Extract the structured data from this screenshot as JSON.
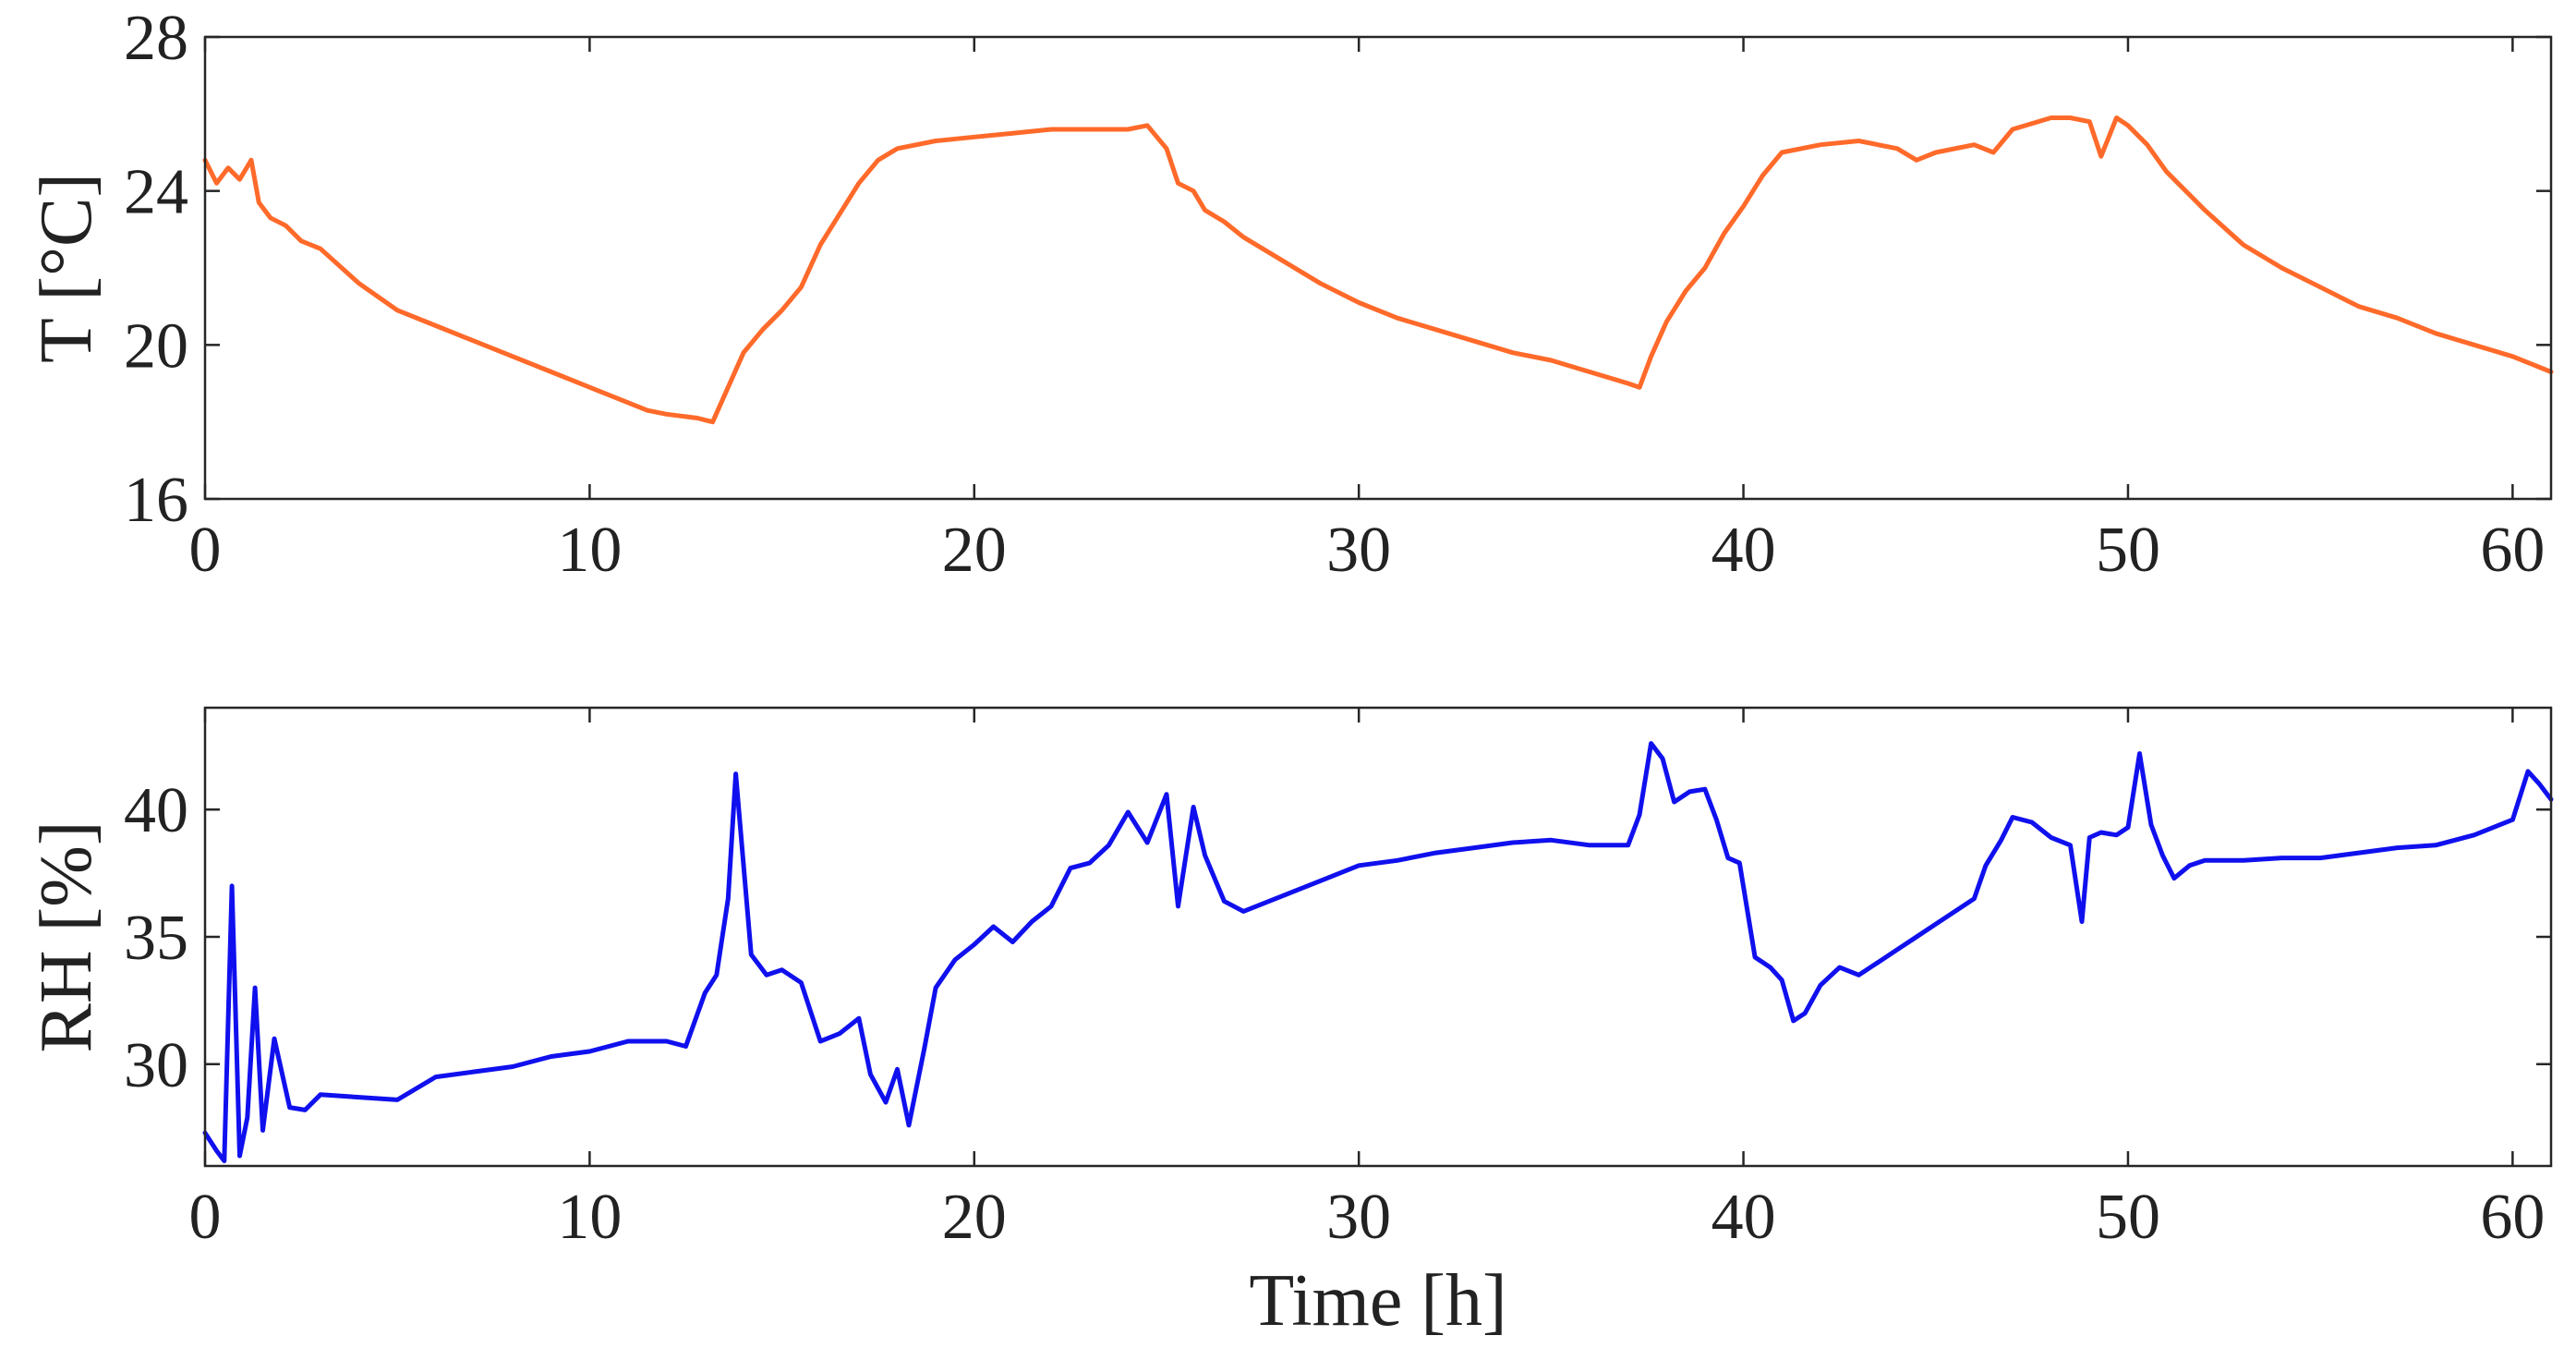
{
  "chart_data": [
    {
      "type": "line",
      "title": "",
      "xlabel": "",
      "ylabel": "T [°C]",
      "xlim": [
        0,
        61
      ],
      "ylim": [
        16,
        28
      ],
      "xticks": [
        0,
        10,
        20,
        30,
        40,
        50,
        60
      ],
      "xtick_labels": [
        "0",
        "10",
        "20",
        "30",
        "40",
        "50",
        "60"
      ],
      "yticks": [
        16,
        20,
        24,
        28
      ],
      "ytick_labels": [
        "16",
        "20",
        "24",
        "28"
      ],
      "grid": false,
      "series": [
        {
          "name": "T",
          "color": "#FF6A2A",
          "x": [
            0,
            0.3,
            0.6,
            0.9,
            1.2,
            1.4,
            1.7,
            2.1,
            2.5,
            3,
            4,
            5,
            6,
            7,
            8,
            9,
            10,
            11,
            11.5,
            12,
            12.8,
            13.2,
            13.6,
            14,
            14.5,
            15,
            15.5,
            16,
            16.5,
            17,
            17.5,
            18,
            19,
            20,
            21,
            22,
            23,
            24,
            24.5,
            25,
            25.3,
            25.7,
            26,
            26.5,
            27,
            28,
            29,
            30,
            31,
            32,
            33,
            34,
            35,
            36,
            37,
            37.3,
            37.6,
            38,
            38.5,
            39,
            39.5,
            40,
            40.5,
            41,
            42,
            43,
            44,
            44.5,
            45,
            46,
            46.5,
            47,
            48,
            48.5,
            49,
            49.3,
            49.7,
            50,
            50.5,
            51,
            52,
            53,
            54,
            55,
            56,
            57,
            58,
            59,
            60,
            61
          ],
          "y": [
            24.8,
            24.2,
            24.6,
            24.3,
            24.8,
            23.7,
            23.3,
            23.1,
            22.7,
            22.5,
            21.6,
            20.9,
            20.5,
            20.1,
            19.7,
            19.3,
            18.9,
            18.5,
            18.3,
            18.2,
            18.1,
            18.0,
            18.9,
            19.8,
            20.4,
            20.9,
            21.5,
            22.6,
            23.4,
            24.2,
            24.8,
            25.1,
            25.3,
            25.4,
            25.5,
            25.6,
            25.6,
            25.6,
            25.7,
            25.1,
            24.2,
            24.0,
            23.5,
            23.2,
            22.8,
            22.2,
            21.6,
            21.1,
            20.7,
            20.4,
            20.1,
            19.8,
            19.6,
            19.3,
            19.0,
            18.9,
            19.7,
            20.6,
            21.4,
            22.0,
            22.9,
            23.6,
            24.4,
            25.0,
            25.2,
            25.3,
            25.1,
            24.8,
            25.0,
            25.2,
            25.0,
            25.6,
            25.9,
            25.9,
            25.8,
            24.9,
            25.9,
            25.7,
            25.2,
            24.5,
            23.5,
            22.6,
            22.0,
            21.5,
            21.0,
            20.7,
            20.3,
            20.0,
            19.7,
            19.3
          ]
        }
      ]
    },
    {
      "type": "line",
      "title": "",
      "xlabel": "Time [h]",
      "ylabel": "RH [%]",
      "xlim": [
        0,
        61
      ],
      "ylim": [
        26,
        44
      ],
      "xticks": [
        0,
        10,
        20,
        30,
        40,
        50,
        60
      ],
      "xtick_labels": [
        "0",
        "10",
        "20",
        "30",
        "40",
        "50",
        "60"
      ],
      "yticks": [
        30,
        35,
        40
      ],
      "ytick_labels": [
        "30",
        "35",
        "40"
      ],
      "grid": false,
      "series": [
        {
          "name": "RH",
          "color": "#1010EE",
          "x": [
            0,
            0.3,
            0.5,
            0.7,
            0.9,
            1.1,
            1.3,
            1.5,
            1.8,
            2.2,
            2.6,
            3,
            4,
            5,
            6,
            7,
            8,
            9,
            10,
            11,
            12,
            12.5,
            13,
            13.3,
            13.6,
            13.8,
            14.2,
            14.6,
            15,
            15.5,
            16,
            16.5,
            17,
            17.3,
            17.7,
            18,
            18.3,
            18.7,
            19,
            19.5,
            20,
            20.5,
            21,
            21.5,
            22,
            22.5,
            23,
            23.5,
            24,
            24.5,
            25,
            25.3,
            25.7,
            26,
            26.5,
            27,
            28,
            29,
            30,
            31,
            32,
            33,
            34,
            35,
            36,
            37,
            37.3,
            37.6,
            37.9,
            38.2,
            38.6,
            39,
            39.3,
            39.6,
            39.9,
            40.3,
            40.7,
            41,
            41.3,
            41.6,
            42,
            42.5,
            43,
            43.5,
            44,
            44.5,
            45,
            45.5,
            46,
            46.3,
            46.7,
            47,
            47.5,
            48,
            48.5,
            48.8,
            49,
            49.3,
            49.7,
            50,
            50.3,
            50.6,
            50.9,
            51.2,
            51.6,
            52,
            53,
            54,
            55,
            56,
            57,
            58,
            59,
            60,
            60.4,
            60.7,
            61
          ],
          "y": [
            27.3,
            26.6,
            26.2,
            37.0,
            26.4,
            27.9,
            33.0,
            27.4,
            31.0,
            28.3,
            28.2,
            28.8,
            28.7,
            28.6,
            29.5,
            29.7,
            29.9,
            30.3,
            30.5,
            30.9,
            30.9,
            30.7,
            32.8,
            33.5,
            36.5,
            41.4,
            34.3,
            33.5,
            33.7,
            33.2,
            30.9,
            31.2,
            31.8,
            29.6,
            28.5,
            29.8,
            27.6,
            30.6,
            33.0,
            34.1,
            34.7,
            35.4,
            34.8,
            35.6,
            36.2,
            37.7,
            37.9,
            38.6,
            39.9,
            38.7,
            40.6,
            36.2,
            40.1,
            38.2,
            36.4,
            36.0,
            36.6,
            37.2,
            37.8,
            38.0,
            38.3,
            38.5,
            38.7,
            38.8,
            38.6,
            38.6,
            39.8,
            42.6,
            42.0,
            40.3,
            40.7,
            40.8,
            39.6,
            38.1,
            37.9,
            34.2,
            33.8,
            33.3,
            31.7,
            32.0,
            33.1,
            33.8,
            33.5,
            34.0,
            34.5,
            35.0,
            35.5,
            36.0,
            36.5,
            37.8,
            38.8,
            39.7,
            39.5,
            38.9,
            38.6,
            35.6,
            38.9,
            39.1,
            39.0,
            39.3,
            42.2,
            39.4,
            38.2,
            37.3,
            37.8,
            38.0,
            38.0,
            38.1,
            38.1,
            38.3,
            38.5,
            38.6,
            39.0,
            39.6,
            41.5,
            41.0,
            40.4
          ]
        }
      ]
    }
  ]
}
